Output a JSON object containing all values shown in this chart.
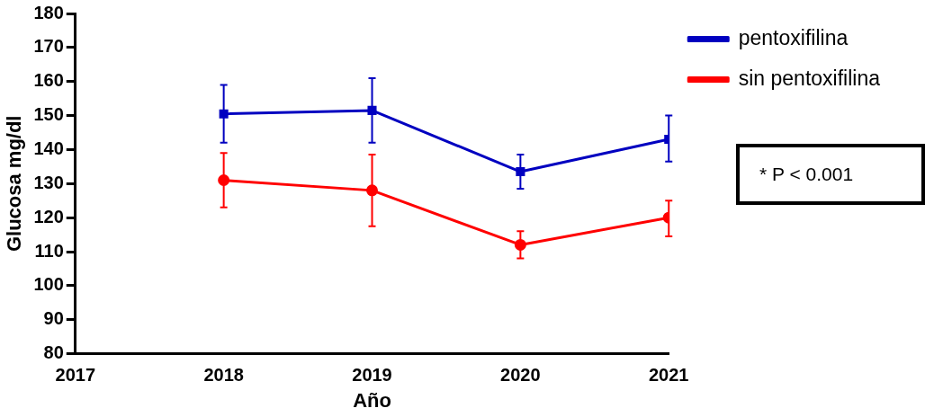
{
  "chart_data": {
    "type": "line",
    "xlabel": "Año",
    "ylabel": "Glucosa mg/dl",
    "x": [
      2018,
      2019,
      2020,
      2021
    ],
    "xlim": [
      2017,
      2021
    ],
    "xticks": [
      2017,
      2018,
      2019,
      2020,
      2021
    ],
    "ylim": [
      80,
      180
    ],
    "yticks": [
      80,
      90,
      100,
      110,
      120,
      130,
      140,
      150,
      160,
      170,
      180
    ],
    "grid": false,
    "legend": "top right",
    "line_style": "solid",
    "series": [
      {
        "name": "pentoxifilina",
        "color": "#0000c0",
        "marker": "square",
        "values": [
          150.5,
          151.5,
          133.5,
          143
        ],
        "errors": [
          [
            142,
            159
          ],
          [
            142,
            161
          ],
          [
            128.5,
            138.5
          ],
          [
            136.5,
            150
          ]
        ]
      },
      {
        "name": "sin pentoxifilina",
        "color": "#ff0000",
        "marker": "circle",
        "values": [
          131,
          128,
          112,
          120
        ],
        "errors": [
          [
            123,
            139
          ],
          [
            117.5,
            138.5
          ],
          [
            108,
            116
          ],
          [
            114.5,
            125
          ]
        ]
      }
    ],
    "annotations": [
      "* P < 0.001"
    ]
  }
}
